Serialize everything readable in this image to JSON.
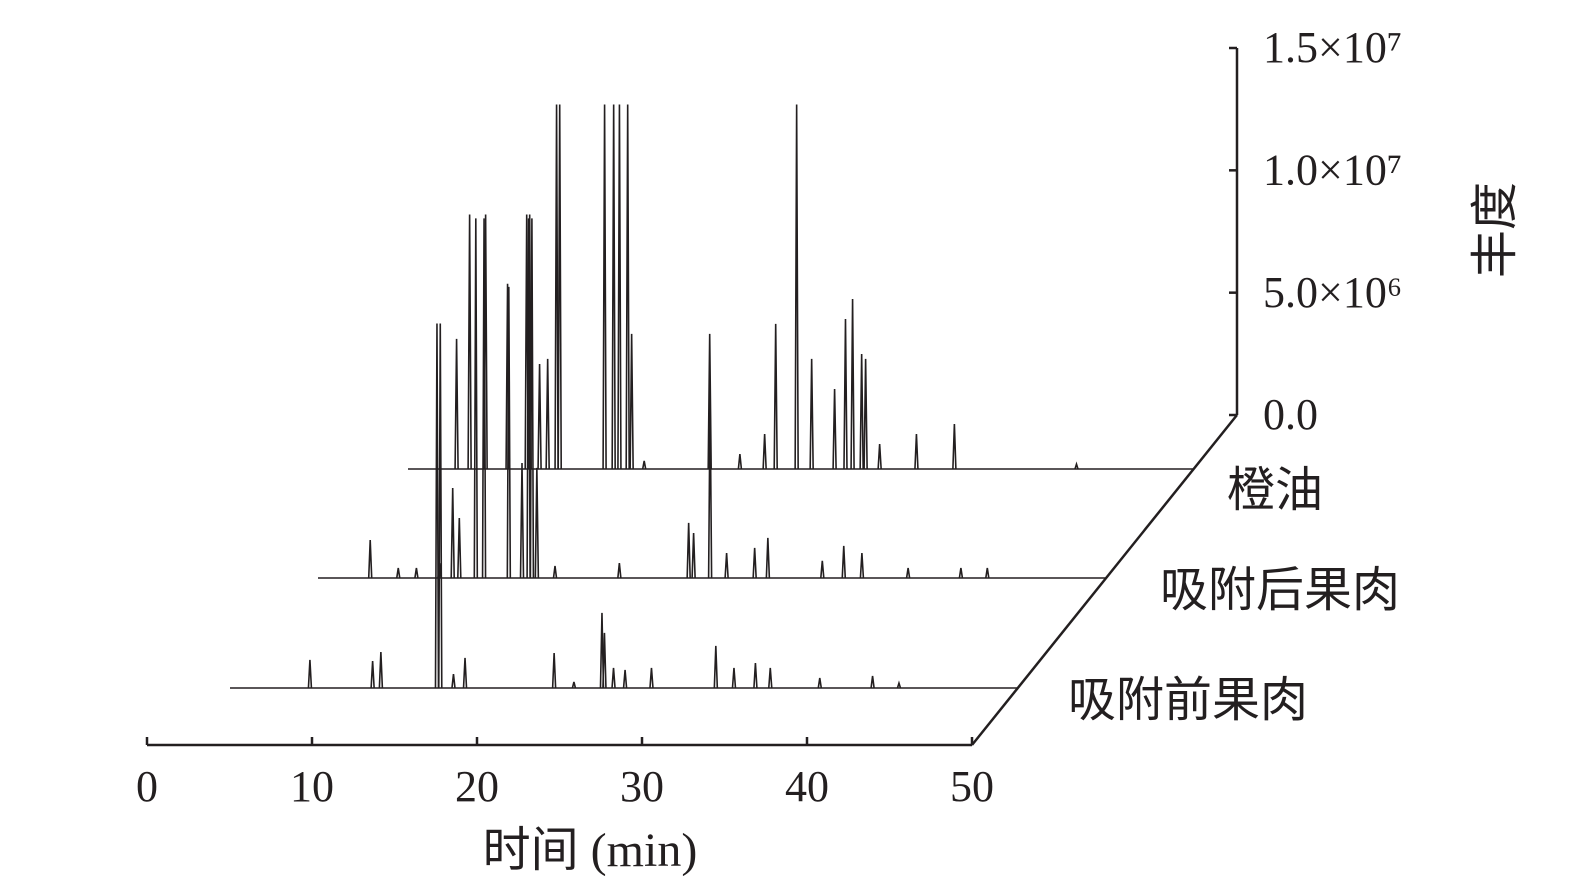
{
  "chart_data": {
    "type": "line",
    "x_label": "时间 (min)",
    "y_label": "丰度",
    "xlim": [
      0,
      50
    ],
    "xticks": [
      0,
      10,
      20,
      30,
      40,
      50
    ],
    "ylim": [
      0,
      15000000.0
    ],
    "yticks": [
      {
        "value": 0,
        "label": "0.0"
      },
      {
        "value": 5000000.0,
        "label": "5.0×10⁶"
      },
      {
        "value": 10000000.0,
        "label": "1.0×10⁷"
      },
      {
        "value": 15000000.0,
        "label": "1.5×10⁷"
      }
    ],
    "series": [
      {
        "name": "吸附前果肉",
        "color": "#231f20",
        "x": [
          7.1,
          10.9,
          11.4,
          14.8,
          15.0,
          15.8,
          16.5,
          21.9,
          23.1,
          24.8,
          24.95,
          25.5,
          26.2,
          27.8,
          31.7,
          32.8,
          34.1,
          35.0,
          38.0,
          41.2,
          42.8
        ],
        "values": [
          1150000.0,
          1100000.0,
          1470000.0,
          14900000.0,
          14900000.0,
          570000.0,
          1230000.0,
          1430000.0,
          250000.0,
          3070000.0,
          2250000.0,
          820000.0,
          740000.0,
          820000.0,
          1720000.0,
          820000.0,
          1020000.0,
          820000.0,
          410000.0,
          490000.0,
          200000.0
        ]
      },
      {
        "name": "吸附后果肉",
        "color": "#231f20",
        "x": [
          5.4,
          7.1,
          8.2,
          9.6,
          10.4,
          10.8,
          11.8,
          12.3,
          13.8,
          14.6,
          15.0,
          15.2,
          15.5,
          16.6,
          20.5,
          24.7,
          25.0,
          26.0,
          27.0,
          28.7,
          29.5,
          32.8,
          34.1,
          35.2,
          38.0,
          41.2,
          42.8
        ],
        "values": [
          1550000.0,
          410000.0,
          410000.0,
          610000.0,
          3680000.0,
          2450000.0,
          14700000.0,
          14700000.0,
          11900000.0,
          4700000.0,
          14700000.0,
          14700000.0,
          4500000.0,
          490000.0,
          610000.0,
          2250000.0,
          1840000.0,
          7360000.0,
          1020000.0,
          1230000.0,
          1640000.0,
          700000.0,
          1310000.0,
          1020000.0,
          410000.0,
          410000.0,
          410000.0
        ]
      },
      {
        "name": "橙油",
        "color": "#231f20",
        "x": [
          5.33,
          6.12,
          7.09,
          8.42,
          9.58,
          9.76,
          10.36,
          10.85,
          11.39,
          11.58,
          14.3,
          14.85,
          15.2,
          15.7,
          15.94,
          16.7,
          20.67,
          22.5,
          24.0,
          24.67,
          25.94,
          26.85,
          28.24,
          28.9,
          29.33,
          29.88,
          30.12,
          30.97,
          33.2,
          35.5,
          42.9
        ],
        "values": [
          5320000.0,
          10400000.0,
          10400000.0,
          7570000.0,
          10400000.0,
          10400000.0,
          4290000.0,
          4500000.0,
          14900000.0,
          14900000.0,
          14900000.0,
          14900000.0,
          14900000.0,
          14900000.0,
          5520000.0,
          330000.0,
          5520000.0,
          610000.0,
          1430000.0,
          5930000.0,
          14900000.0,
          4500000.0,
          3270000.0,
          6130000.0,
          6950000.0,
          4700000.0,
          4500000.0,
          1020000.0,
          1430000.0,
          1840000.0,
          200000.0
        ]
      }
    ]
  }
}
